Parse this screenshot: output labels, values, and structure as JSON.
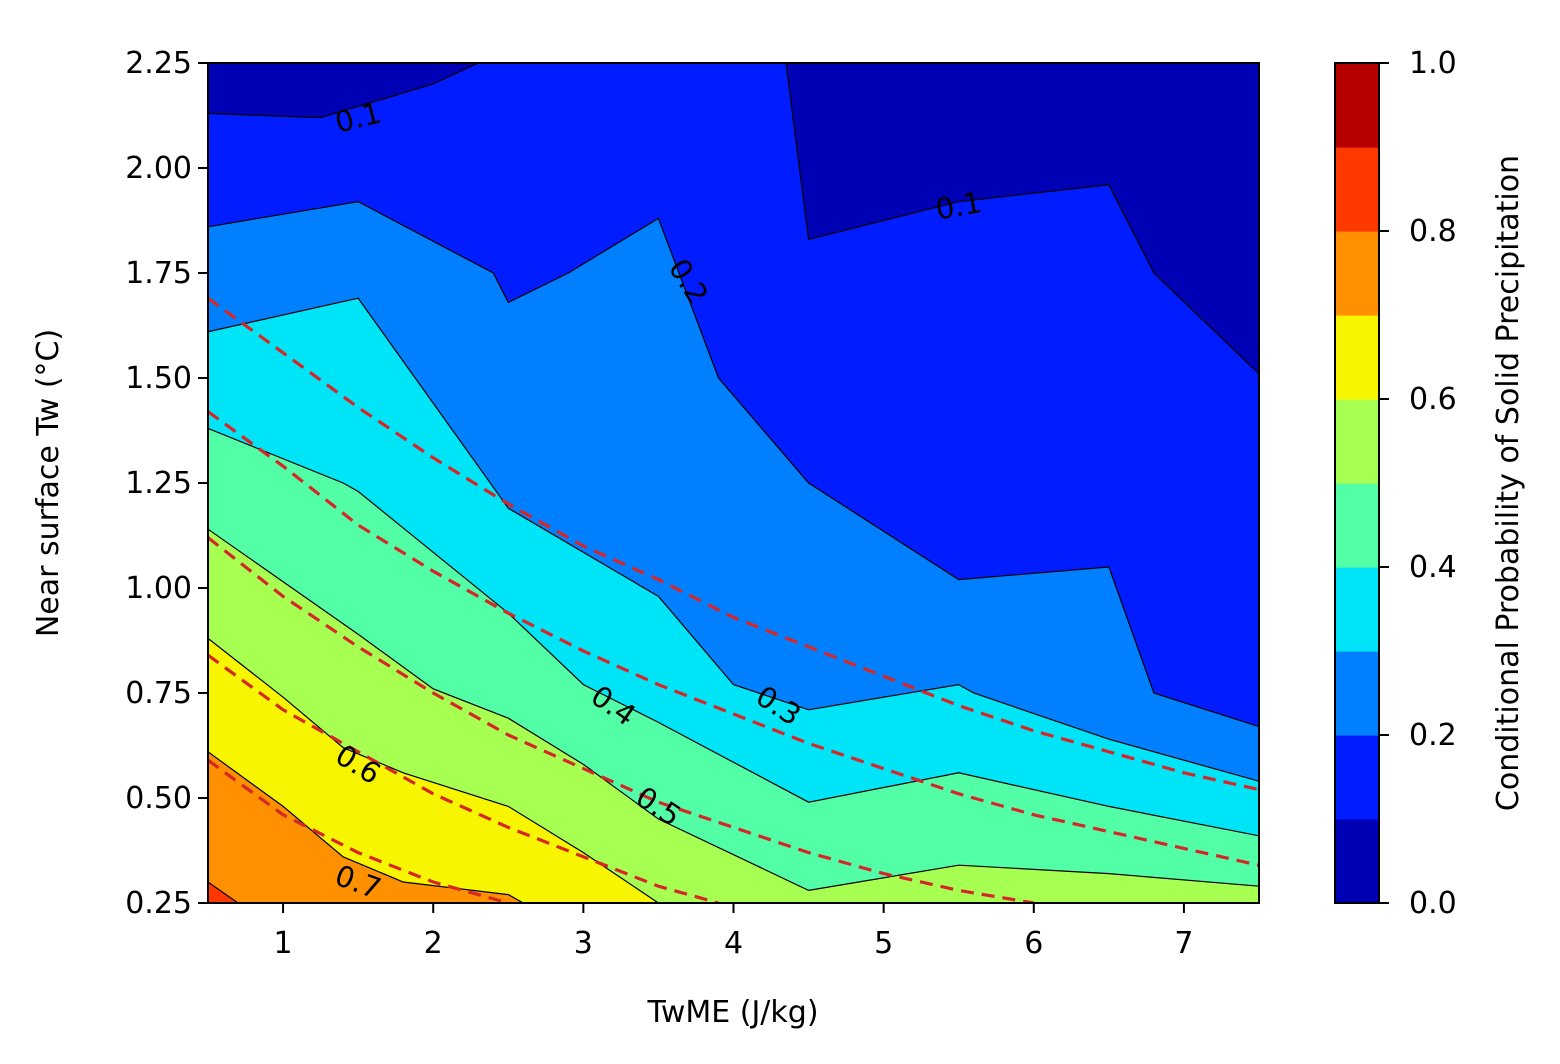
{
  "chart_data": {
    "type": "heatmap",
    "subtype": "filled-contour",
    "title": "",
    "xlabel": "TwME (J/kg)",
    "ylabel": "Near surface Tw (°C)",
    "xlim": [
      0.5,
      7.5
    ],
    "ylim": [
      0.25,
      2.25
    ],
    "xticks": [
      1,
      2,
      3,
      4,
      5,
      6,
      7
    ],
    "xtick_labels": [
      "1",
      "2",
      "3",
      "4",
      "5",
      "6",
      "7"
    ],
    "yticks": [
      0.25,
      0.5,
      0.75,
      1.0,
      1.25,
      1.5,
      1.75,
      2.0,
      2.25
    ],
    "ytick_labels": [
      "0.25",
      "0.50",
      "0.75",
      "1.00",
      "1.25",
      "1.50",
      "1.75",
      "2.00",
      "2.25"
    ],
    "grid": false,
    "colorbar": {
      "label": "Conditional Probability of Solid Precipitation",
      "levels": [
        0.0,
        0.1,
        0.2,
        0.3,
        0.4,
        0.5,
        0.6,
        0.7,
        0.8,
        0.9,
        1.0
      ],
      "colors": [
        "#0000b5",
        "#001cff",
        "#0080ff",
        "#00e4f8",
        "#52ffa7",
        "#a7ff52",
        "#f8f500",
        "#ff9100",
        "#ff3800",
        "#b60000"
      ],
      "ticks": [
        0.0,
        0.2,
        0.4,
        0.6,
        0.8,
        1.0
      ],
      "tick_labels": [
        "0.0",
        "0.2",
        "0.4",
        "0.6",
        "0.8",
        "1.0"
      ]
    },
    "contour_lines": [
      {
        "level": 0.1,
        "x": [
          0.5,
          1.25,
          2.0,
          2.3
        ],
        "y": [
          2.13,
          2.12,
          2.2,
          2.25
        ]
      },
      {
        "level": 0.1,
        "x": [
          4.35,
          4.5,
          5.5,
          6.5,
          6.8,
          7.5
        ],
        "y": [
          2.25,
          1.83,
          1.92,
          1.96,
          1.75,
          1.51
        ]
      },
      {
        "level": 0.2,
        "x": [
          0.5,
          1.5,
          2.4,
          2.5,
          2.9,
          3.5,
          3.9,
          4.5,
          5.5,
          6.5,
          6.8,
          7.5
        ],
        "y": [
          1.86,
          1.92,
          1.75,
          1.68,
          1.75,
          1.88,
          1.5,
          1.25,
          1.02,
          1.05,
          0.75,
          0.67
        ]
      },
      {
        "level": 0.3,
        "x": [
          0.5,
          1.5,
          2.5,
          3.5,
          4.0,
          4.5,
          5.5,
          5.6,
          6.5,
          7.5
        ],
        "y": [
          1.61,
          1.69,
          1.19,
          0.98,
          0.77,
          0.71,
          0.77,
          0.75,
          0.64,
          0.54
        ]
      },
      {
        "level": 0.4,
        "x": [
          0.5,
          1.4,
          1.5,
          2.5,
          3.0,
          3.5,
          4.5,
          5.5,
          6.5,
          7.5
        ],
        "y": [
          1.38,
          1.25,
          1.23,
          0.94,
          0.77,
          0.68,
          0.49,
          0.56,
          0.48,
          0.41
        ]
      },
      {
        "level": 0.5,
        "x": [
          0.5,
          1.5,
          2.0,
          2.5,
          3.0,
          3.5,
          4.5,
          5.5,
          6.5,
          7.5
        ],
        "y": [
          1.14,
          0.89,
          0.76,
          0.69,
          0.58,
          0.45,
          0.28,
          0.34,
          0.32,
          0.29
        ]
      },
      {
        "level": 0.6,
        "x": [
          0.5,
          1.0,
          1.4,
          1.8,
          2.5,
          3.0,
          3.5,
          4.2
        ],
        "y": [
          0.88,
          0.74,
          0.62,
          0.56,
          0.48,
          0.37,
          0.25,
          0.25
        ]
      },
      {
        "level": 0.7,
        "x": [
          0.5,
          1.0,
          1.4,
          1.8,
          2.5,
          2.6
        ],
        "y": [
          0.61,
          0.48,
          0.36,
          0.3,
          0.27,
          0.25
        ]
      },
      {
        "level": 0.8,
        "x": [
          0.5,
          0.7
        ],
        "y": [
          0.3,
          0.25
        ]
      }
    ],
    "contour_labels": [
      {
        "text": "0.1",
        "x": 1.5,
        "y": 2.12,
        "angle": -14
      },
      {
        "text": "0.1",
        "x": 5.5,
        "y": 1.91,
        "angle": -10
      },
      {
        "text": "0.2",
        "x": 3.7,
        "y": 1.73,
        "angle": 58
      },
      {
        "text": "0.3",
        "x": 4.3,
        "y": 0.72,
        "angle": 33
      },
      {
        "text": "0.4",
        "x": 3.2,
        "y": 0.72,
        "angle": 35
      },
      {
        "text": "0.5",
        "x": 3.5,
        "y": 0.48,
        "angle": 33
      },
      {
        "text": "0.6",
        "x": 1.5,
        "y": 0.58,
        "angle": 32
      },
      {
        "text": "0.7",
        "x": 1.5,
        "y": 0.3,
        "angle": 20
      }
    ],
    "dashed_fits": [
      {
        "color": "#d62728",
        "x": [
          0.5,
          1.0,
          1.5,
          2.0,
          2.5,
          3.0,
          3.5,
          4.0,
          4.5,
          5.0,
          5.5,
          6.0,
          6.5,
          7.0,
          7.5
        ],
        "y": [
          1.69,
          1.56,
          1.43,
          1.31,
          1.2,
          1.1,
          1.02,
          0.93,
          0.86,
          0.79,
          0.72,
          0.66,
          0.61,
          0.56,
          0.52
        ]
      },
      {
        "color": "#d62728",
        "x": [
          0.5,
          1.0,
          1.5,
          2.0,
          2.5,
          3.0,
          3.5,
          4.0,
          4.5,
          5.0,
          5.5,
          6.0,
          6.5,
          7.0,
          7.5
        ],
        "y": [
          1.42,
          1.29,
          1.15,
          1.04,
          0.94,
          0.85,
          0.77,
          0.7,
          0.63,
          0.57,
          0.51,
          0.46,
          0.42,
          0.38,
          0.34
        ]
      },
      {
        "color": "#d62728",
        "x": [
          0.5,
          1.0,
          1.5,
          2.0,
          2.5,
          3.0,
          3.5,
          4.0,
          4.5,
          5.0,
          5.5,
          6.0
        ],
        "y": [
          1.12,
          0.98,
          0.86,
          0.75,
          0.65,
          0.57,
          0.49,
          0.43,
          0.37,
          0.32,
          0.28,
          0.25
        ]
      },
      {
        "color": "#d62728",
        "x": [
          0.5,
          1.0,
          1.5,
          2.0,
          2.5,
          3.0,
          3.5,
          3.9
        ],
        "y": [
          0.84,
          0.71,
          0.61,
          0.51,
          0.43,
          0.36,
          0.29,
          0.25
        ]
      },
      {
        "color": "#d62728",
        "x": [
          0.5,
          1.0,
          1.5,
          2.0,
          2.5
        ],
        "y": [
          0.59,
          0.46,
          0.37,
          0.3,
          0.25
        ]
      }
    ]
  }
}
